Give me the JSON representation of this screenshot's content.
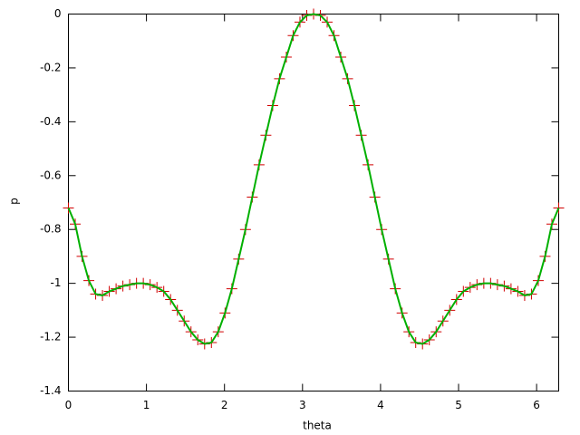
{
  "chart_data": {
    "type": "line",
    "x_label": "theta",
    "y_label": "p",
    "x": [
      0,
      0.0873,
      0.1745,
      0.2618,
      0.3491,
      0.4363,
      0.5236,
      0.6109,
      0.6981,
      0.7854,
      0.8727,
      0.9599,
      1.0472,
      1.1345,
      1.2217,
      1.309,
      1.3963,
      1.4835,
      1.5708,
      1.6581,
      1.7453,
      1.8326,
      1.9199,
      2.0071,
      2.0944,
      2.1817,
      2.2689,
      2.3562,
      2.4435,
      2.5307,
      2.618,
      2.7053,
      2.7925,
      2.8798,
      2.9671,
      3.0543,
      3.1416,
      3.2289,
      3.3161,
      3.4034,
      3.4907,
      3.5779,
      3.6652,
      3.7525,
      3.8397,
      3.927,
      4.0143,
      4.1015,
      4.1888,
      4.2761,
      4.3633,
      4.4506,
      4.5379,
      4.6251,
      4.7124,
      4.7997,
      4.8869,
      4.9742,
      5.0615,
      5.1487,
      5.236,
      5.3233,
      5.4105,
      5.4978,
      5.5851,
      5.6723,
      5.7596,
      5.8469,
      5.9341,
      6.0214,
      6.1087,
      6.1959,
      6.2832
    ],
    "values": [
      -0.72,
      -0.78,
      -0.9,
      -0.99,
      -1.04,
      -1.045,
      -1.03,
      -1.02,
      -1.01,
      -1.005,
      -1.0,
      -1.0,
      -1.005,
      -1.015,
      -1.03,
      -1.06,
      -1.1,
      -1.14,
      -1.18,
      -1.21,
      -1.225,
      -1.22,
      -1.18,
      -1.11,
      -1.02,
      -0.91,
      -0.8,
      -0.68,
      -0.56,
      -0.45,
      -0.34,
      -0.24,
      -0.16,
      -0.08,
      -0.03,
      -0.005,
      0,
      -0.005,
      -0.03,
      -0.08,
      -0.16,
      -0.24,
      -0.34,
      -0.45,
      -0.56,
      -0.68,
      -0.8,
      -0.91,
      -1.02,
      -1.11,
      -1.18,
      -1.22,
      -1.225,
      -1.21,
      -1.18,
      -1.14,
      -1.1,
      -1.06,
      -1.03,
      -1.015,
      -1.005,
      -1.0,
      -1.0,
      -1.005,
      -1.01,
      -1.02,
      -1.03,
      -1.045,
      -1.04,
      -0.99,
      -0.9,
      -0.78,
      -0.72
    ],
    "line_color": "#00b000",
    "point_color": "#d00000",
    "xlim": [
      0,
      6.2832
    ],
    "ylim": [
      -1.4,
      0
    ],
    "xticks": [
      0,
      1,
      2,
      3,
      4,
      5,
      6
    ],
    "yticks": [
      -1.4,
      -1.2,
      -1,
      -0.8,
      -0.6,
      -0.4,
      -0.2,
      0
    ]
  }
}
